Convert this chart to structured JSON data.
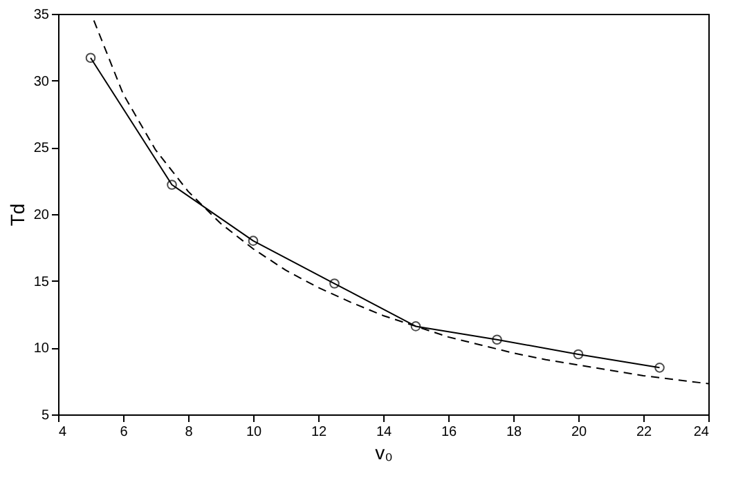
{
  "chart_data": {
    "type": "line",
    "xlabel": "v₀",
    "ylabel": "Td",
    "xlim": [
      4,
      24
    ],
    "xticks": [
      4,
      6,
      8,
      10,
      12,
      14,
      16,
      18,
      20,
      22,
      24
    ],
    "ylim": [
      5,
      35
    ],
    "yticks": [
      5,
      10,
      15,
      20,
      25,
      30,
      35
    ],
    "grid": false,
    "series": [
      {
        "color": "#000000",
        "marker": "circle",
        "line_style": "solid",
        "x": [
          5,
          7.5,
          10,
          12.5,
          15,
          17.5,
          20,
          22.5
        ],
        "values": [
          31.7,
          22.2,
          18.0,
          14.8,
          11.6,
          10.6,
          9.5,
          8.5
        ]
      },
      {
        "color": "#000000",
        "marker": "none",
        "line_style": "dashed",
        "x": [
          5.1,
          6,
          7,
          8,
          9,
          10,
          11,
          12,
          13,
          14,
          15,
          16,
          17,
          18,
          19,
          20,
          21,
          22,
          23,
          24
        ],
        "values": [
          34.5,
          29.0,
          24.8,
          21.7,
          19.3,
          17.4,
          15.8,
          14.5,
          13.4,
          12.4,
          11.6,
          10.8,
          10.2,
          9.6,
          9.1,
          8.7,
          8.3,
          7.9,
          7.6,
          7.3
        ]
      }
    ]
  }
}
